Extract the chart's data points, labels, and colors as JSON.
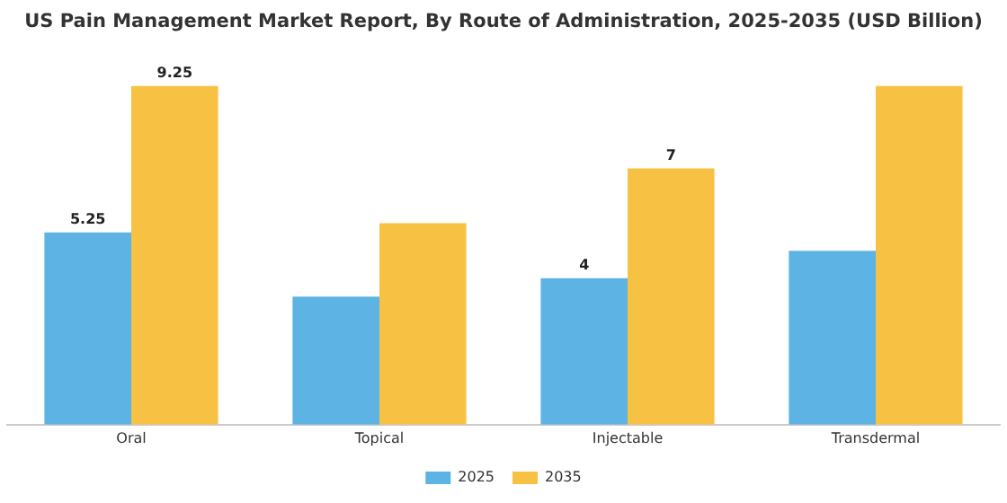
{
  "chart_data": {
    "type": "bar",
    "title": "US Pain Management Market Report, By Route of Administration, 2025-2035 (USD Billion)",
    "categories": [
      "Oral",
      "Topical",
      "Injectable",
      "Transdermal"
    ],
    "series": [
      {
        "name": "2025",
        "color": "#5db3e4",
        "values": [
          5.25,
          3.5,
          4,
          4.75
        ],
        "value_labels": [
          "5.25",
          null,
          "4",
          null
        ]
      },
      {
        "name": "2035",
        "color": "#f7c244",
        "values": [
          9.25,
          5.5,
          7,
          9.25
        ],
        "value_labels": [
          "9.25",
          null,
          "7",
          null
        ]
      }
    ],
    "legend": "bottom",
    "grid": false
  }
}
